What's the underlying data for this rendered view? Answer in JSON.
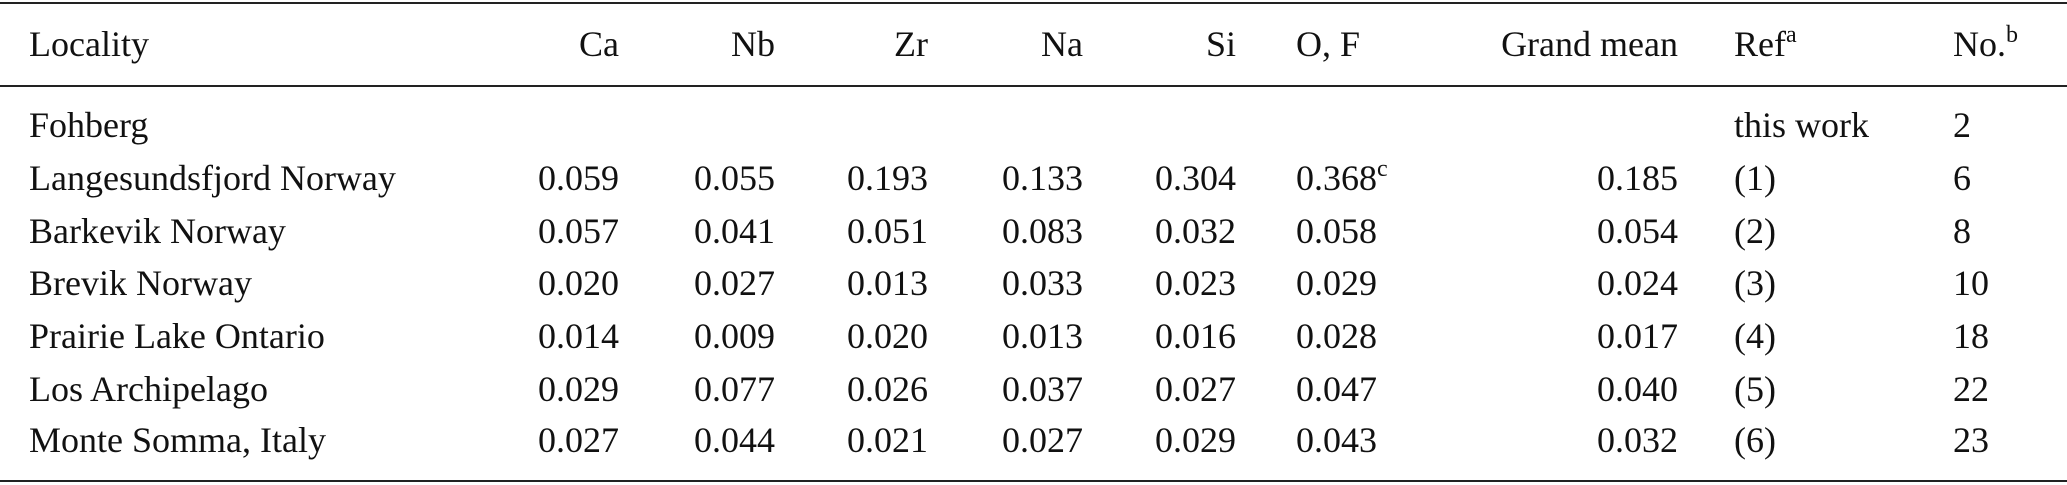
{
  "table": {
    "header": [
      {
        "text": "Locality"
      },
      {
        "text": "Ca"
      },
      {
        "text": "Nb"
      },
      {
        "text": "Zr"
      },
      {
        "text": "Na"
      },
      {
        "text": "Si"
      },
      {
        "text": "O, F"
      },
      {
        "text": "Grand mean"
      },
      {
        "text": "Ref",
        "sup": "a"
      },
      {
        "text": "No.",
        "sup": "b"
      }
    ],
    "rows": [
      {
        "locality": "Fohberg",
        "ref": "this work",
        "no": 2
      },
      {
        "locality": "Langesundsfjord Norway",
        "values": [
          "0.059",
          "0.055",
          "0.193",
          "0.133",
          "0.304",
          {
            "text": "0.368",
            "sup": "c"
          }
        ],
        "grand_mean": "0.185",
        "ref": "(1)",
        "no": 6
      },
      {
        "locality": "Barkevik Norway",
        "values": [
          "0.057",
          "0.041",
          "0.051",
          "0.083",
          "0.032",
          "0.058"
        ],
        "grand_mean": "0.054",
        "ref": "(2)",
        "no": 8
      },
      {
        "locality": "Brevik Norway",
        "values": [
          "0.020",
          "0.027",
          "0.013",
          "0.033",
          "0.023",
          "0.029"
        ],
        "grand_mean": "0.024",
        "ref": "(3)",
        "no": 10
      },
      {
        "locality": "Prairie Lake Ontario",
        "values": [
          "0.014",
          "0.009",
          "0.020",
          "0.013",
          "0.016",
          "0.028"
        ],
        "grand_mean": "0.017",
        "ref": "(4)",
        "no": 18
      },
      {
        "locality": "Los Archipelago",
        "values": [
          "0.029",
          "0.077",
          "0.026",
          "0.037",
          "0.027",
          "0.047"
        ],
        "grand_mean": "0.040",
        "ref": "(5)",
        "no": 22
      },
      {
        "locality": "Monte Somma, Italy",
        "values": [
          "0.027",
          "0.044",
          "0.021",
          "0.027",
          "0.029",
          "0.043"
        ],
        "grand_mean": "0.032",
        "ref": "(6)",
        "no": 23
      }
    ]
  }
}
